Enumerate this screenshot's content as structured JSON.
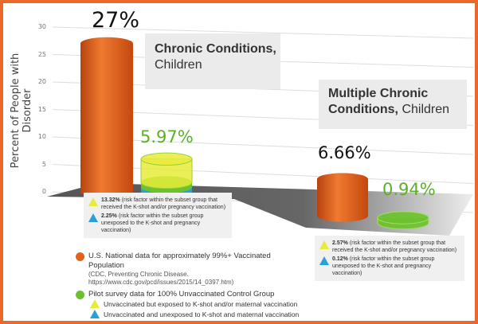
{
  "chart_data": {
    "type": "bar",
    "style": "3d-cylinder",
    "ylabel": "Percent of People with Disorder",
    "ylim": [
      0,
      30
    ],
    "yticks": [
      0,
      5,
      10,
      15,
      20,
      25,
      30
    ],
    "groups": [
      {
        "title_bold": "Chronic Conditions,",
        "title_rest": "Children",
        "national": {
          "value": 27,
          "label": "27%"
        },
        "pilot": {
          "value": 5.97,
          "label": "5.97%",
          "exposed": {
            "value": 13.32,
            "label": "13.32%",
            "text": "(risk factor within the subset group that received the K-shot and/or pregnancy vaccination)"
          },
          "unexposed": {
            "value": 2.25,
            "label": "2.25%",
            "text": "(risk factor within the subset group unexposed to the K-shot and pregnancy vaccination)"
          }
        }
      },
      {
        "title_bold": "Multiple Chronic Conditions,",
        "title_rest": "Children",
        "national": {
          "value": 6.66,
          "label": "6.66%"
        },
        "pilot": {
          "value": 0.94,
          "label": "0.94%",
          "exposed": {
            "value": 2.57,
            "label": "2.57%",
            "text": "(risk factor within the subset group that received the K-shot and/or pregnancy vaccination)"
          },
          "unexposed": {
            "value": 0.12,
            "label": "0.12%",
            "text": "(risk factor within the subset group unexposed to the K-shot and pregnancy vaccination)"
          }
        }
      }
    ],
    "legend": {
      "national": "U.S. National data for approximately 99%+ Vaccinated Population",
      "national_source": "(CDC, Preventing Chronic Disease. https://www.cdc.gov/pcd/issues/2015/14_0397.htm)",
      "pilot": "Pilot survey data for 100% Unvaccinated Control Group",
      "exposed": "Unvaccinated but exposed to K-shot and/or maternal vaccination",
      "unexposed": "Unvaccinated and unexposed to K-shot and maternal vaccination"
    },
    "colors": {
      "national": "#e8601c",
      "pilot": "#6cc22e",
      "exposed": "#e6ec3a",
      "unexposed": "#2a9fd8",
      "border": "#e8692a"
    }
  }
}
